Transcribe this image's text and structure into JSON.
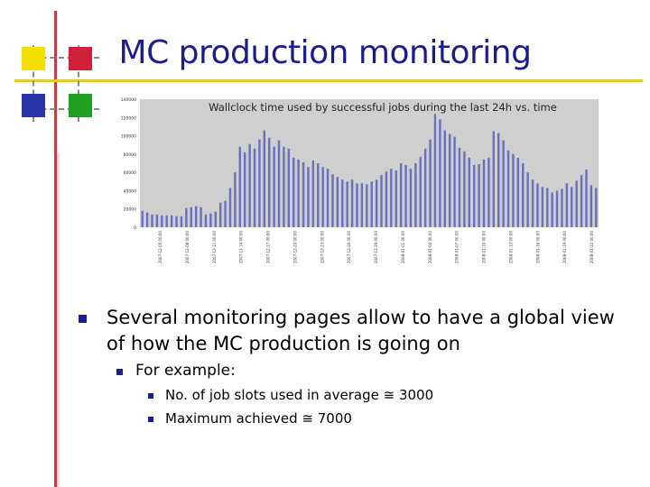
{
  "slide": {
    "title": "MC production monitoring",
    "bullets": [
      {
        "text_line1": "Several monitoring pages allow to have a global view",
        "text_line2": "of how the MC production is going on"
      },
      {
        "text": "For example:"
      },
      {
        "text": "No. of job slots used in average  ≅ 3000"
      },
      {
        "text": "Maximum achieved ≅ 7000"
      }
    ]
  },
  "colors": {
    "title": "#1a1e8c",
    "bar": "#6a70c0",
    "plot_bg": "#cfcfcf",
    "bullet": "#1a2090"
  },
  "chart_data": {
    "type": "bar",
    "title": "Wallclock time used by successful jobs during the last 24h vs. time",
    "ylim": [
      0,
      140000
    ],
    "yticks": [
      "0",
      "20000",
      "40000",
      "60000",
      "80000",
      "100000",
      "120000",
      "140000"
    ],
    "xlabels": [
      "2007-12-05 00:00",
      "2007-12-08 00:00",
      "2007-12-11 00:00",
      "2007-12-14 00:00",
      "2007-12-17 00:00",
      "2007-12-20 00:00",
      "2007-12-23 00:00",
      "2007-12-26 00:00",
      "2007-12-29 00:00",
      "2008-01-01 00:00",
      "2008-01-04 00:00",
      "2008-01-07 00:00",
      "2008-01-10 00:00",
      "2008-01-13 00:00",
      "2008-01-16 00:00",
      "2008-01-19 00:00",
      "2008-01-22 00:00"
    ],
    "values": [
      18000,
      16000,
      14000,
      14000,
      13000,
      13000,
      13000,
      12000,
      12000,
      21000,
      22000,
      23000,
      22000,
      14000,
      15000,
      17000,
      27000,
      29000,
      43000,
      60000,
      88000,
      82000,
      91000,
      86000,
      96000,
      106000,
      98000,
      88000,
      95000,
      88000,
      86000,
      76000,
      74000,
      71000,
      66000,
      73000,
      70000,
      66000,
      64000,
      58000,
      55000,
      52000,
      50000,
      52000,
      48000,
      48000,
      47000,
      50000,
      52000,
      57000,
      61000,
      64000,
      62000,
      70000,
      68000,
      64000,
      70000,
      77000,
      86000,
      96000,
      124000,
      118000,
      106000,
      102000,
      99000,
      87000,
      83000,
      76000,
      68000,
      69000,
      74000,
      76000,
      105000,
      103000,
      95000,
      84000,
      80000,
      76000,
      70000,
      60000,
      52000,
      48000,
      44000,
      43000,
      38000,
      40000,
      42000,
      48000,
      44000,
      51000,
      57000,
      63000,
      46000,
      43000
    ]
  }
}
